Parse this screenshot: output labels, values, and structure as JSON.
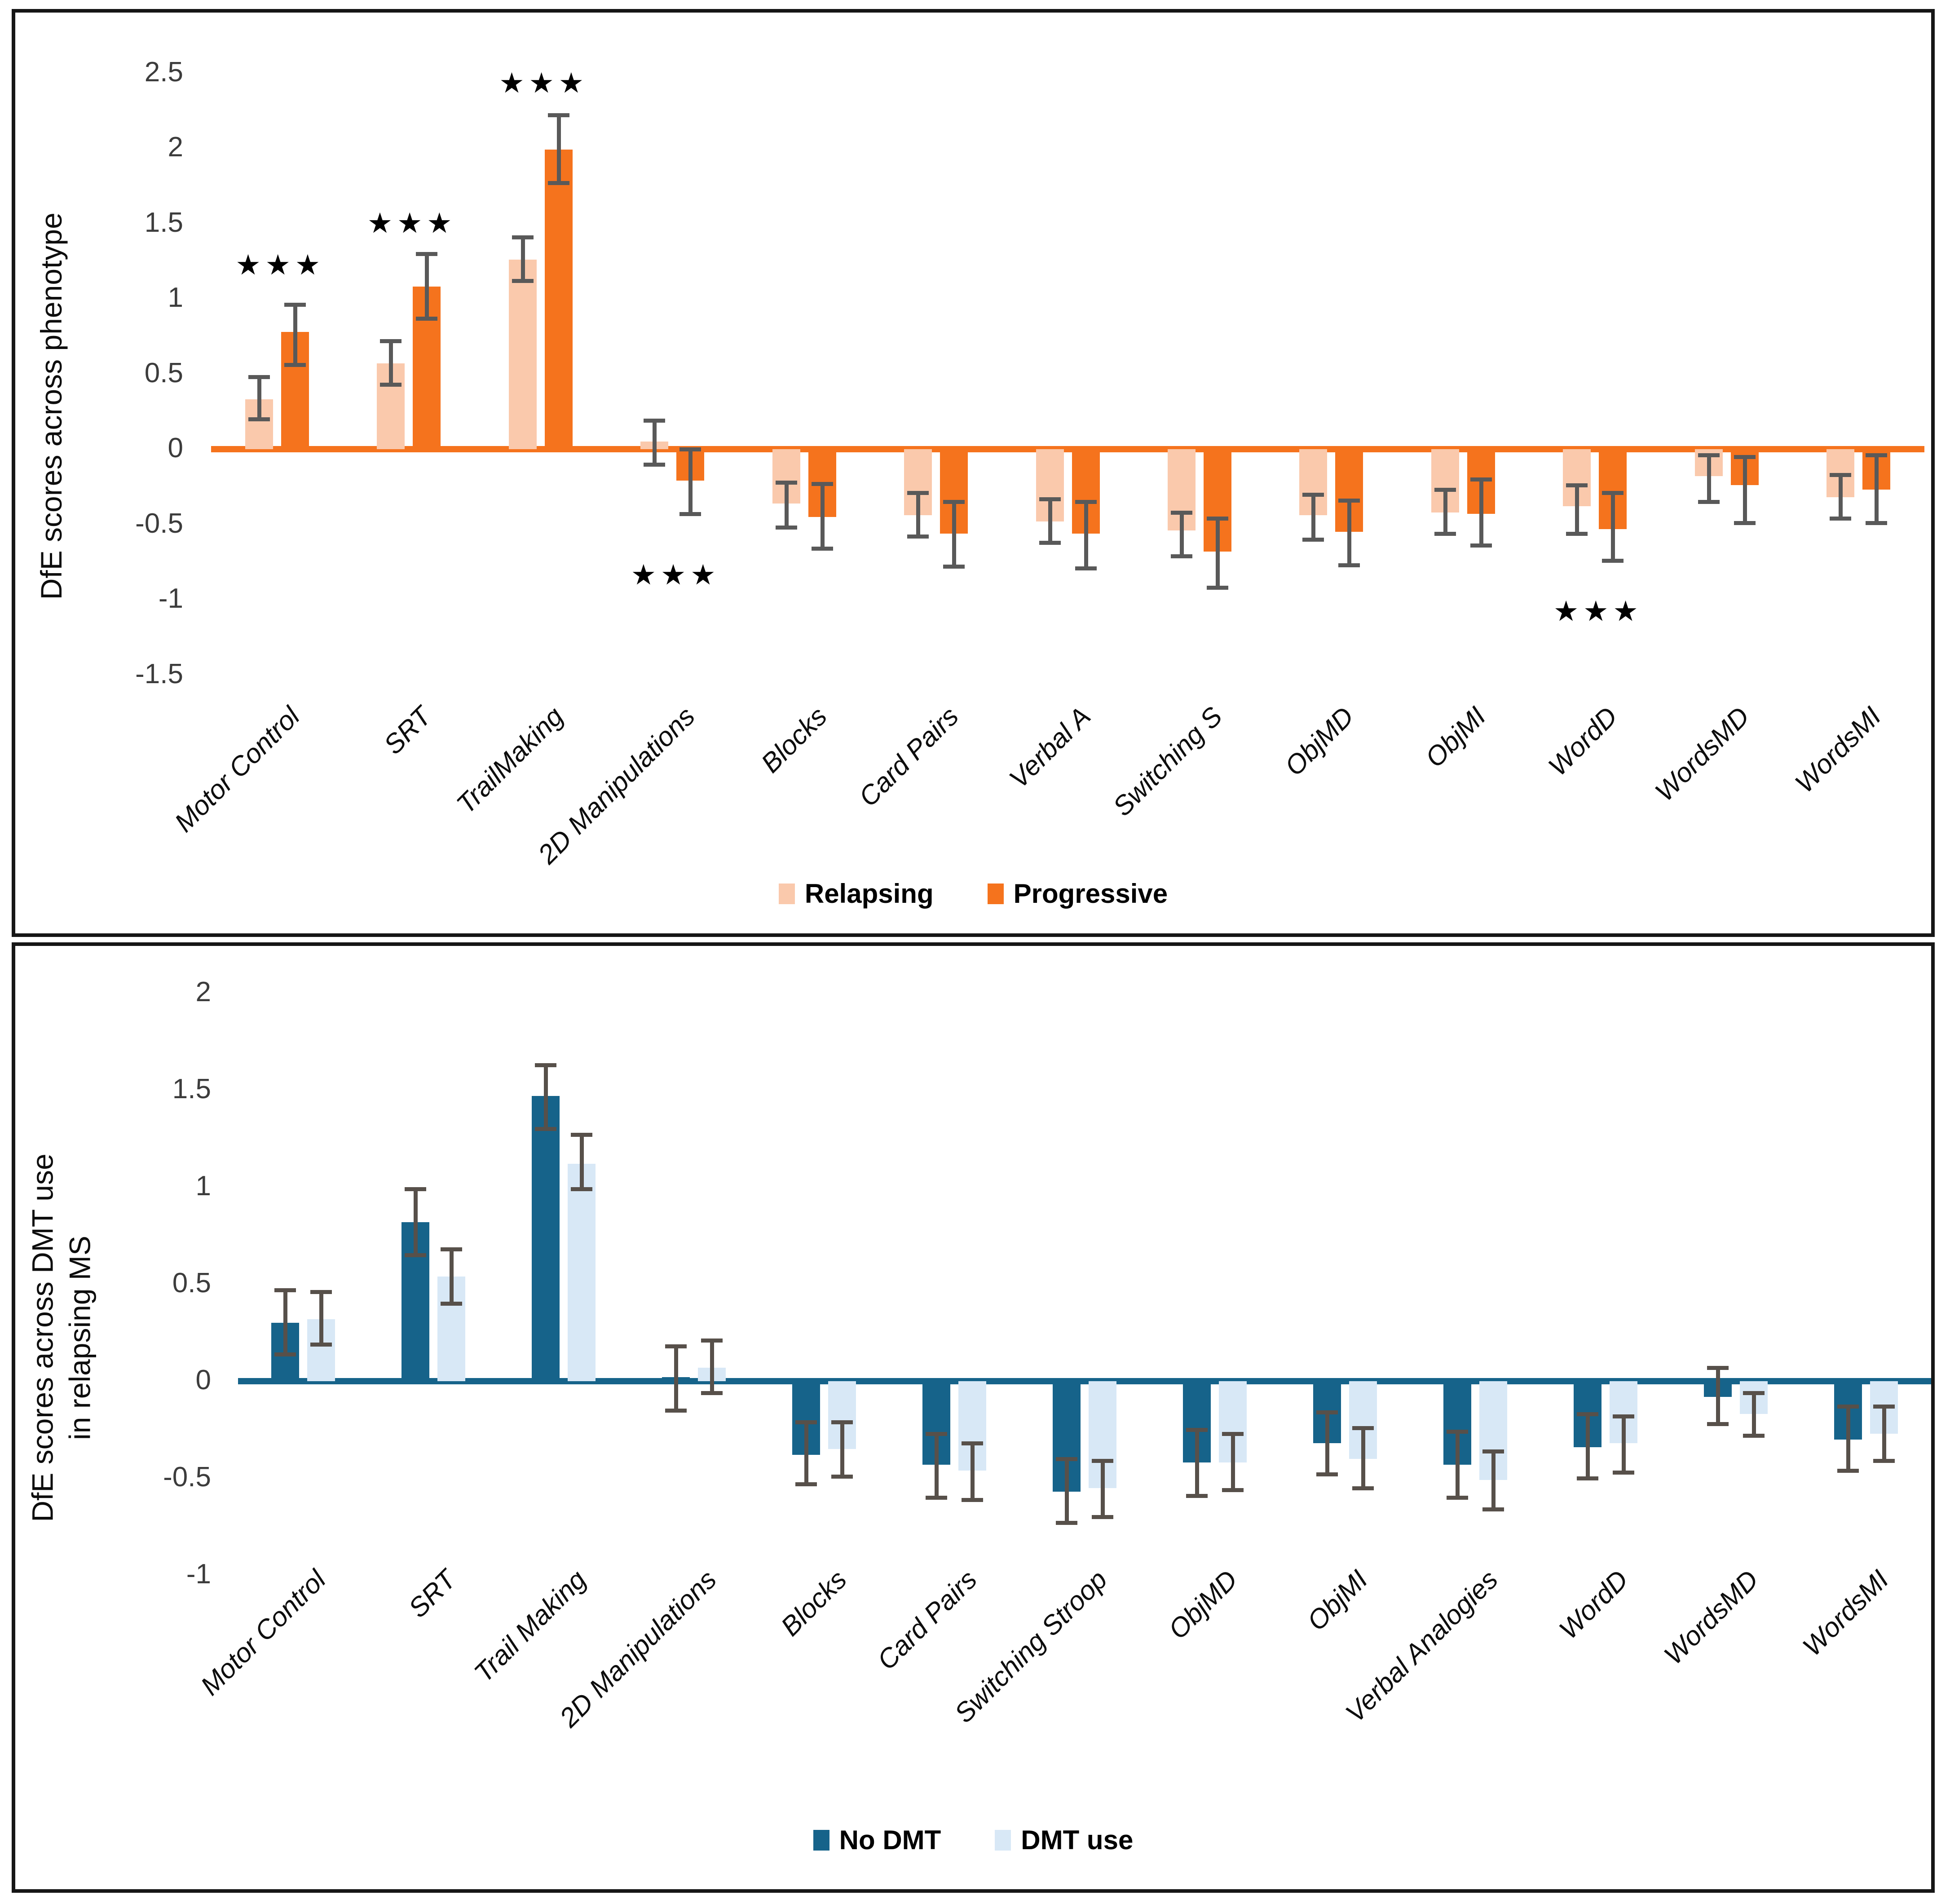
{
  "figure": {
    "panel_count": 2,
    "colors": {
      "relapsing": "#FAC9AC",
      "progressive": "#F5731D",
      "no_dmt": "#16638A",
      "dmt_use": "#D8E8F6",
      "error_bar_top": "#595959",
      "error_bar_bottom": "#57504A",
      "border": "#161616"
    },
    "sig_symbol": "★★★"
  },
  "chart_data": [
    {
      "type": "bar",
      "title": "",
      "ylabel": "DfE scores across phenotype",
      "ylabel_line2": "",
      "ylim": [
        -1.5,
        2.5
      ],
      "grid": false,
      "legend_position": "bottom",
      "yticks": [
        {
          "label": "2.5",
          "value": 2.5
        },
        {
          "label": "2",
          "value": 2
        },
        {
          "label": "1.5",
          "value": 1.5
        },
        {
          "label": "1",
          "value": 1
        },
        {
          "label": "0.5",
          "value": 0.5
        },
        {
          "label": "0",
          "value": 0
        },
        {
          "label": "-0.5",
          "value": -0.5
        },
        {
          "label": "-1",
          "value": -1
        },
        {
          "label": "-1.5",
          "value": -1.5
        }
      ],
      "categories": [
        "Motor Control",
        "SRT",
        "TrailMaking",
        "2D Manipulations",
        "Blocks",
        "Card Pairs",
        "Verbal A",
        "Switching S",
        "ObjMD",
        "ObjMI",
        "WordD",
        "WordsMD",
        "WordsMI"
      ],
      "series": [
        {
          "name": "Relapsing",
          "color": "#FAC9AC",
          "values": [
            0.33,
            0.57,
            1.26,
            0.05,
            -0.36,
            -0.44,
            -0.48,
            -0.54,
            -0.44,
            -0.42,
            -0.38,
            -0.18,
            -0.32
          ],
          "err_hi": [
            0.48,
            0.72,
            1.41,
            0.19,
            -0.22,
            -0.29,
            -0.33,
            -0.42,
            -0.3,
            -0.27,
            -0.24,
            -0.04,
            -0.17
          ],
          "err_lo": [
            0.2,
            0.43,
            1.12,
            -0.1,
            -0.52,
            -0.58,
            -0.62,
            -0.71,
            -0.6,
            -0.56,
            -0.56,
            -0.35,
            -0.46
          ]
        },
        {
          "name": "Progressive",
          "color": "#F5731D",
          "values": [
            0.78,
            1.08,
            1.99,
            -0.21,
            -0.45,
            -0.56,
            -0.56,
            -0.68,
            -0.55,
            -0.43,
            -0.53,
            -0.24,
            -0.27
          ],
          "err_hi": [
            0.96,
            1.3,
            2.22,
            0.0,
            -0.23,
            -0.35,
            -0.35,
            -0.46,
            -0.34,
            -0.2,
            -0.29,
            -0.05,
            -0.04
          ],
          "err_lo": [
            0.56,
            0.87,
            1.77,
            -0.43,
            -0.66,
            -0.78,
            -0.79,
            -0.92,
            -0.77,
            -0.64,
            -0.74,
            -0.49,
            -0.49
          ]
        }
      ],
      "sig_markers": [
        {
          "category_index": 0,
          "y": 1.22
        },
        {
          "category_index": 1,
          "y": 1.5
        },
        {
          "category_index": 2,
          "y": 2.43
        },
        {
          "category_index": 3,
          "y": -0.84
        },
        {
          "category_index": 10,
          "y": -1.08
        }
      ],
      "legend": [
        "Relapsing",
        "Progressive"
      ]
    },
    {
      "type": "bar",
      "title": "",
      "ylabel": "DfE scores across DMT use",
      "ylabel_line2": "in relapsing MS",
      "ylim": [
        -1,
        2
      ],
      "grid": false,
      "legend_position": "bottom",
      "yticks": [
        {
          "label": "2",
          "value": 2
        },
        {
          "label": "1.5",
          "value": 1.5
        },
        {
          "label": "1",
          "value": 1
        },
        {
          "label": "0.5",
          "value": 0.5
        },
        {
          "label": "0",
          "value": 0
        },
        {
          "label": "-0.5",
          "value": -0.5
        },
        {
          "label": "-1",
          "value": -1
        }
      ],
      "categories": [
        "Motor Control",
        "SRT",
        "Trail Making",
        "2D Manipulations",
        "Blocks",
        "Card Pairs",
        "Switching Stroop",
        "ObjMD",
        "ObjMI",
        "Verbal Analogies",
        "WordD",
        "WordsMD",
        "WordsMI"
      ],
      "series": [
        {
          "name": "No DMT",
          "color": "#16638A",
          "values": [
            0.3,
            0.82,
            1.47,
            0.02,
            -0.38,
            -0.43,
            -0.57,
            -0.42,
            -0.32,
            -0.43,
            -0.34,
            -0.08,
            -0.3
          ],
          "err_hi": [
            0.47,
            0.99,
            1.63,
            0.18,
            -0.21,
            -0.27,
            -0.4,
            -0.25,
            -0.16,
            -0.26,
            -0.17,
            0.07,
            -0.13
          ],
          "err_lo": [
            0.14,
            0.65,
            1.3,
            -0.15,
            -0.53,
            -0.6,
            -0.73,
            -0.59,
            -0.48,
            -0.6,
            -0.5,
            -0.22,
            -0.46
          ]
        },
        {
          "name": "DMT use",
          "color": "#D8E8F6",
          "values": [
            0.32,
            0.54,
            1.12,
            0.07,
            -0.35,
            -0.46,
            -0.55,
            -0.42,
            -0.4,
            -0.51,
            -0.32,
            -0.17,
            -0.27
          ],
          "err_hi": [
            0.19,
            0.4,
            0.99,
            -0.06,
            -0.21,
            -0.32,
            -0.41,
            -0.27,
            -0.24,
            -0.36,
            -0.18,
            -0.06,
            -0.13
          ],
          "err_lo": [
            0.46,
            0.68,
            1.27,
            0.21,
            -0.49,
            -0.61,
            -0.7,
            -0.56,
            -0.55,
            -0.66,
            -0.47,
            -0.28,
            -0.41
          ]
        }
      ],
      "sig_markers": [],
      "legend": [
        "No DMT",
        "DMT use"
      ]
    }
  ]
}
